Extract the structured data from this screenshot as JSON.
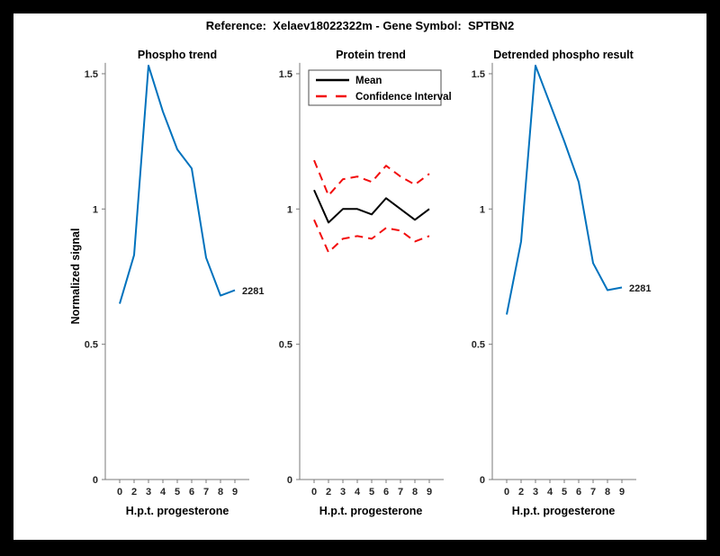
{
  "header": {
    "title": "Reference:  Xelaev18022322m - Gene Symbol:  SPTBN2"
  },
  "colors": {
    "line_blue": "#0072BD",
    "ci_red": "#F20D0D",
    "mean_black": "#000000",
    "axis_gray": "#7A7A7A",
    "tick_text": "#262626"
  },
  "chart_data": [
    {
      "id": "phospho-trend",
      "type": "line",
      "title": "Phospho trend",
      "xlabel": "H.p.t. progesterone",
      "ylabel": "Normalized signal",
      "x_ticklabels": [
        "0",
        "2",
        "3",
        "4",
        "5",
        "6",
        "7",
        "8",
        "9"
      ],
      "y_tick_values": [
        0,
        0.5,
        1,
        1.5
      ],
      "y_ticklabels": [
        "0",
        "0.5",
        "1",
        "1.5"
      ],
      "ylim": [
        0,
        1.54
      ],
      "grid": false,
      "end_label": "2281",
      "series": [
        {
          "name": "2281",
          "style": "solid",
          "color": "#0072BD",
          "values": [
            0.65,
            0.83,
            1.53,
            1.36,
            1.22,
            1.15,
            0.82,
            0.68,
            0.7
          ]
        }
      ]
    },
    {
      "id": "protein-trend",
      "type": "line",
      "title": "Protein trend",
      "xlabel": "H.p.t. progesterone",
      "x_ticklabels": [
        "0",
        "2",
        "3",
        "4",
        "5",
        "6",
        "7",
        "8",
        "9"
      ],
      "y_tick_values": [
        0,
        0.5,
        1,
        1.5
      ],
      "y_ticklabels": [
        "0",
        "0.5",
        "1",
        "1.5"
      ],
      "ylim": [
        0,
        1.54
      ],
      "grid": false,
      "legend": {
        "position": "top-left",
        "items": [
          {
            "label": "Mean",
            "style": "solid",
            "color": "#000000"
          },
          {
            "label": "Confidence Interval",
            "style": "dashed",
            "color": "#F20D0D"
          }
        ]
      },
      "series": [
        {
          "name": "Mean",
          "style": "solid",
          "color": "#000000",
          "values": [
            1.07,
            0.95,
            1.0,
            1.0,
            0.98,
            1.04,
            1.0,
            0.96,
            1.0
          ]
        },
        {
          "name": "Confidence Interval",
          "style": "dashed",
          "color": "#F20D0D",
          "values_upper": [
            1.18,
            1.05,
            1.11,
            1.12,
            1.1,
            1.16,
            1.12,
            1.09,
            1.13
          ],
          "values_lower": [
            0.96,
            0.84,
            0.89,
            0.9,
            0.89,
            0.93,
            0.92,
            0.88,
            0.9
          ]
        }
      ]
    },
    {
      "id": "detrended-phospho",
      "type": "line",
      "title": "Detrended phospho result",
      "xlabel": "H.p.t. progesterone",
      "x_ticklabels": [
        "0",
        "2",
        "3",
        "4",
        "5",
        "6",
        "7",
        "8",
        "9"
      ],
      "y_tick_values": [
        0,
        0.5,
        1,
        1.5
      ],
      "y_ticklabels": [
        "0",
        "0.5",
        "1",
        "1.5"
      ],
      "ylim": [
        0,
        1.54
      ],
      "grid": false,
      "end_label": "2281",
      "series": [
        {
          "name": "2281",
          "style": "solid",
          "color": "#0072BD",
          "values": [
            0.61,
            0.88,
            1.53,
            1.39,
            1.25,
            1.1,
            0.8,
            0.7,
            0.71
          ]
        }
      ]
    }
  ]
}
